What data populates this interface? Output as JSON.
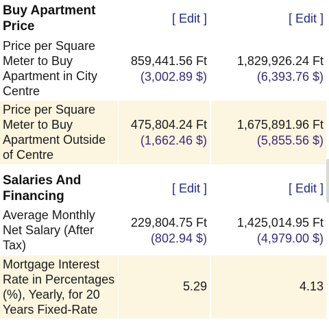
{
  "sections": {
    "buy": {
      "title_line1": "Buy Apartment",
      "title_line2": "Price",
      "edit_a": "[ Edit ]",
      "edit_b": "[ Edit ]",
      "rows": [
        {
          "label": [
            "Price per Square",
            "Meter to Buy",
            "Apartment in City",
            "Centre"
          ],
          "a_primary": "859,441.56 Ft",
          "a_secondary": "(3,002.89 $)",
          "b_primary": "1,829,926.24 Ft",
          "b_secondary": "(6,393.76 $)"
        },
        {
          "label": [
            "Price per Square",
            "Meter to Buy",
            "Apartment Outside",
            "of Centre"
          ],
          "a_primary": "475,804.24 Ft",
          "a_secondary": "(1,662.46 $)",
          "b_primary": "1,675,891.96 Ft",
          "b_secondary": "(5,855.56 $)"
        }
      ]
    },
    "salaries": {
      "title_line1": "Salaries And",
      "title_line2": "Financing",
      "edit_a": "[ Edit ]",
      "edit_b": "[ Edit ]",
      "rows": [
        {
          "label": [
            "Average Monthly",
            "Net Salary (After",
            "Tax)"
          ],
          "a_primary": "229,804.75 Ft",
          "a_secondary": "(802.94 $)",
          "b_primary": "1,425,014.95 Ft",
          "b_secondary": "(4,979.00 $)"
        },
        {
          "label": [
            "Mortgage Interest",
            "Rate in Percentages",
            "(%), Yearly, for 20",
            "Years Fixed-Rate"
          ],
          "a_primary": "5.29",
          "b_primary": "4.13"
        }
      ]
    }
  },
  "colors": {
    "shaded_row": "#fcf5df",
    "link": "#1f2a8a",
    "secondary_value": "#3a2a7a"
  }
}
